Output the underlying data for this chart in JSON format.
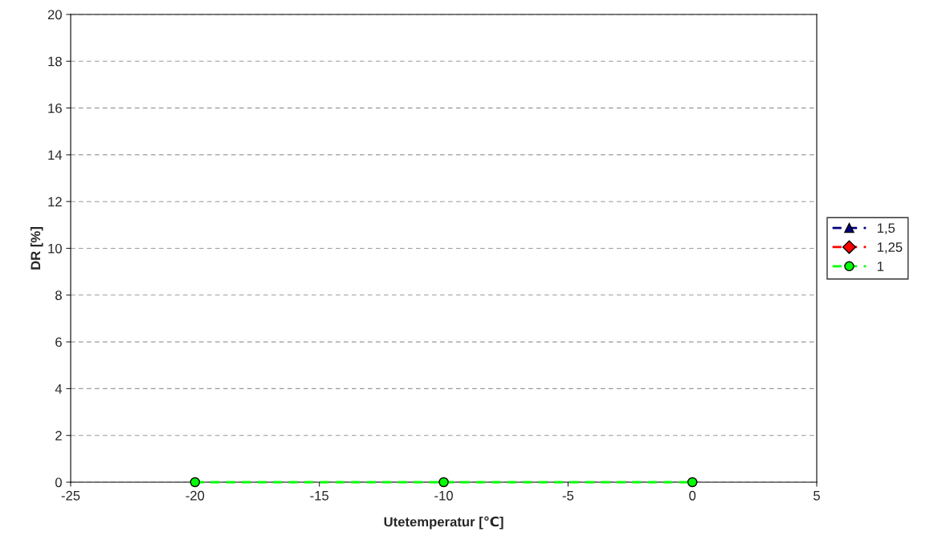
{
  "chart_data": {
    "type": "line",
    "xlabel": "Utetemperatur [℃]",
    "ylabel": "DR [%]",
    "x": [
      -20,
      -10,
      0
    ],
    "series": [
      {
        "name": "1,5",
        "color": "#000080",
        "values": [
          null,
          null,
          null
        ],
        "marker": "triangle"
      },
      {
        "name": "1,25",
        "color": "#ff0000",
        "values": [
          null,
          null,
          null
        ],
        "marker": "diamond"
      },
      {
        "name": "1",
        "color": "#00ff00",
        "values": [
          0,
          0,
          0
        ],
        "marker": "circle"
      }
    ],
    "xlim": [
      -25,
      5
    ],
    "xticks": [
      -25,
      -20,
      -15,
      -10,
      -5,
      0,
      5
    ],
    "ylim": [
      0,
      20
    ],
    "yticks": [
      0,
      2,
      4,
      6,
      8,
      10,
      12,
      14,
      16,
      18,
      20
    ],
    "grid": "y",
    "legend": "right",
    "line_style": "dashed"
  }
}
